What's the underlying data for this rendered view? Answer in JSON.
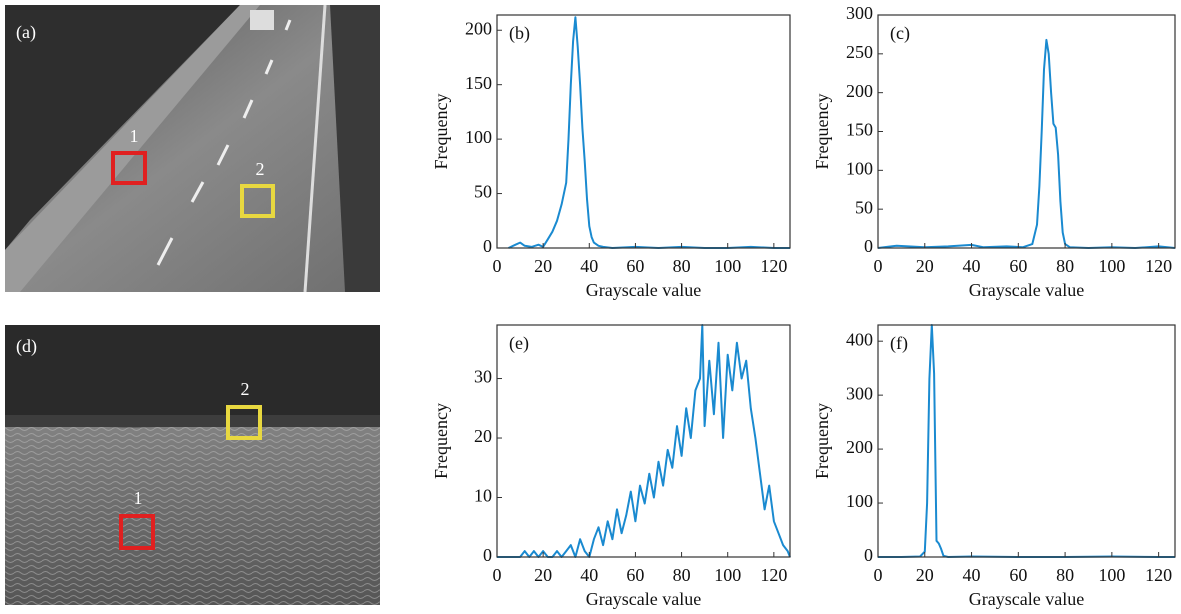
{
  "panels": [
    {
      "label": "(a)",
      "boxes": [
        "1",
        "2"
      ]
    },
    {
      "label": "(d)",
      "boxes": [
        "1",
        "2"
      ]
    }
  ],
  "chart_data": [
    {
      "type": "line",
      "panel_label": "(b)",
      "x_label": "Grayscale value",
      "y_label": "Frequency",
      "color": "#1a8ad0",
      "x": [
        5,
        8,
        10,
        12,
        15,
        18,
        20,
        22,
        24,
        26,
        28,
        30,
        31,
        32,
        33,
        34,
        35,
        36,
        37,
        38,
        39,
        40,
        41,
        42,
        44,
        46,
        50,
        60,
        70,
        80,
        90,
        100,
        110,
        120,
        127
      ],
      "values": [
        0,
        3,
        5,
        2,
        1,
        3,
        1,
        8,
        15,
        25,
        40,
        60,
        100,
        150,
        190,
        212,
        185,
        150,
        110,
        80,
        45,
        20,
        10,
        5,
        2,
        1,
        0,
        1,
        0,
        1,
        0,
        0,
        1,
        0,
        0
      ],
      "xlim": [
        0,
        127
      ],
      "ylim": [
        0,
        214
      ],
      "xticks": [
        0,
        20,
        40,
        60,
        80,
        100,
        120
      ],
      "yticks": [
        0,
        50,
        100,
        150,
        200
      ]
    },
    {
      "type": "line",
      "panel_label": "(c)",
      "x_label": "Grayscale value",
      "y_label": "Frequency",
      "color": "#1a8ad0",
      "x": [
        0,
        8,
        20,
        30,
        40,
        45,
        55,
        62,
        66,
        68,
        69,
        70,
        71,
        72,
        73,
        74,
        75,
        76,
        77,
        78,
        79,
        80,
        82,
        90,
        100,
        110,
        120,
        127
      ],
      "values": [
        0,
        3,
        1,
        2,
        4,
        1,
        2,
        1,
        5,
        30,
        80,
        150,
        230,
        268,
        250,
        200,
        160,
        155,
        120,
        60,
        20,
        5,
        1,
        0,
        1,
        0,
        2,
        0
      ],
      "xlim": [
        0,
        127
      ],
      "ylim": [
        0,
        300
      ],
      "xticks": [
        0,
        20,
        40,
        60,
        80,
        100,
        120
      ],
      "yticks": [
        0,
        50,
        100,
        150,
        200,
        250,
        300
      ]
    },
    {
      "type": "line",
      "panel_label": "(e)",
      "x_label": "Grayscale value",
      "y_label": "Frequency",
      "color": "#1a8ad0",
      "x": [
        0,
        4,
        8,
        10,
        12,
        14,
        16,
        18,
        20,
        22,
        24,
        26,
        28,
        30,
        32,
        34,
        36,
        38,
        40,
        42,
        44,
        46,
        48,
        50,
        52,
        54,
        56,
        58,
        60,
        62,
        64,
        66,
        68,
        70,
        72,
        74,
        76,
        78,
        80,
        82,
        84,
        86,
        88,
        89,
        90,
        92,
        94,
        96,
        98,
        100,
        102,
        104,
        106,
        108,
        110,
        112,
        114,
        116,
        118,
        120,
        122,
        124,
        126,
        127
      ],
      "values": [
        0,
        0,
        0,
        0,
        1,
        0,
        1,
        0,
        1,
        0,
        0,
        1,
        0,
        1,
        2,
        0,
        3,
        1,
        0,
        3,
        5,
        2,
        6,
        3,
        8,
        4,
        7,
        11,
        6,
        12,
        9,
        14,
        10,
        16,
        12,
        18,
        15,
        22,
        17,
        25,
        20,
        28,
        30,
        39,
        22,
        33,
        24,
        36,
        20,
        34,
        28,
        36,
        30,
        33,
        25,
        20,
        14,
        8,
        12,
        6,
        4,
        2,
        1,
        0
      ],
      "xlim": [
        0,
        127
      ],
      "ylim": [
        0,
        39
      ],
      "xticks": [
        0,
        20,
        40,
        60,
        80,
        100,
        120
      ],
      "yticks": [
        0,
        10,
        20,
        30
      ]
    },
    {
      "type": "line",
      "panel_label": "(f)",
      "x_label": "Grayscale value",
      "y_label": "Frequency",
      "color": "#1a8ad0",
      "x": [
        0,
        10,
        18,
        20,
        21,
        22,
        23,
        24,
        25,
        26,
        27,
        28,
        30,
        40,
        60,
        80,
        100,
        120,
        127
      ],
      "values": [
        0,
        0,
        1,
        10,
        100,
        330,
        430,
        340,
        30,
        25,
        15,
        2,
        0,
        1,
        0,
        0,
        1,
        0,
        0
      ],
      "xlim": [
        0,
        127
      ],
      "ylim": [
        0,
        430
      ],
      "xticks": [
        0,
        20,
        40,
        60,
        80,
        100,
        120
      ],
      "yticks": [
        0,
        100,
        200,
        300,
        400
      ]
    }
  ]
}
